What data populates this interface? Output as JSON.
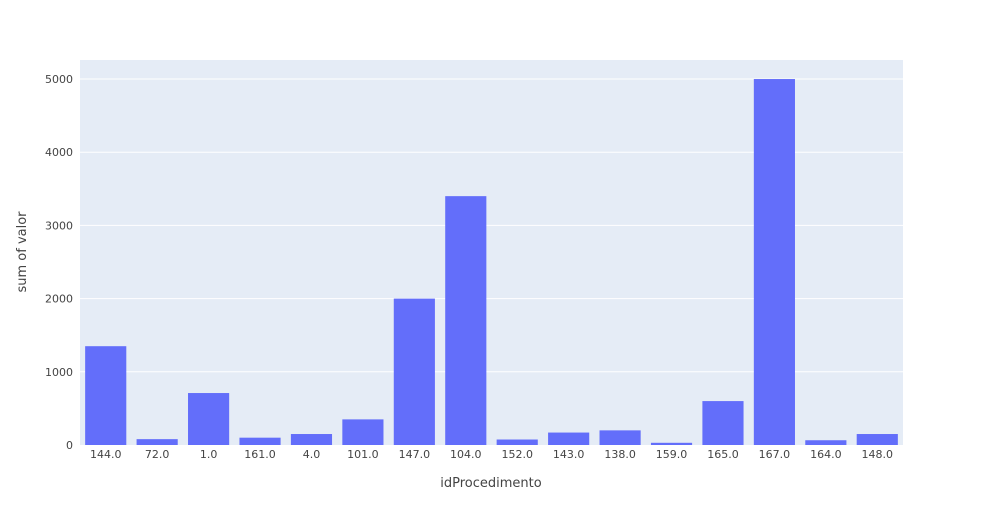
{
  "chart_data": {
    "type": "bar",
    "xlabel": "idProcedimento",
    "ylabel": "sum of valor",
    "categories": [
      "144.0",
      "72.0",
      "1.0",
      "161.0",
      "4.0",
      "101.0",
      "147.0",
      "104.0",
      "152.0",
      "143.0",
      "138.0",
      "159.0",
      "165.0",
      "167.0",
      "164.0",
      "148.0"
    ],
    "values": [
      1350,
      80,
      710,
      100,
      150,
      350,
      2000,
      3400,
      75,
      170,
      200,
      30,
      600,
      5000,
      65,
      150
    ],
    "ylim": [
      0,
      5260
    ],
    "yticks": [
      0,
      1000,
      2000,
      3000,
      4000,
      5000
    ],
    "ytick_labels": [
      "0",
      "1000",
      "2000",
      "3000",
      "4000",
      "5000"
    ],
    "grid": true,
    "colors": {
      "bar": "#636efa",
      "plot_bg": "#e5ecf6",
      "grid": "#ffffff",
      "text": "#444444"
    }
  }
}
